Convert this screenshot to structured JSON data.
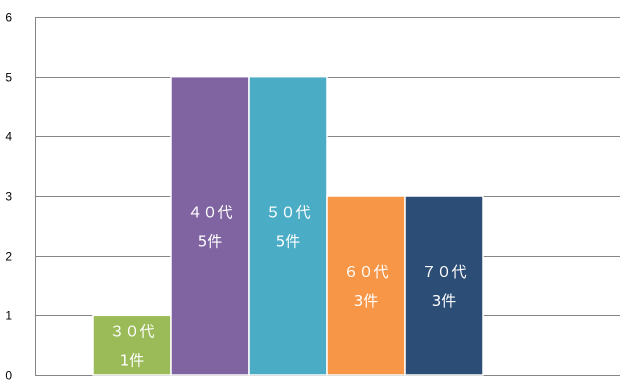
{
  "chart_data": {
    "type": "bar",
    "categories": [
      "３０代",
      "４０代",
      "５０代",
      "６０代",
      "７０代"
    ],
    "values": [
      1,
      5,
      5,
      3,
      3
    ],
    "data_labels": [
      [
        "３０代",
        "1件"
      ],
      [
        "４０代",
        "5件"
      ],
      [
        "５０代",
        "5件"
      ],
      [
        "６０代",
        "3件"
      ],
      [
        "７０代",
        "3件"
      ]
    ],
    "colors": [
      "#9bbb59",
      "#8064a2",
      "#4bacc6",
      "#f79646",
      "#2c4d75"
    ],
    "ylim": [
      0,
      6
    ],
    "yticks": [
      0,
      1,
      2,
      3,
      4,
      5,
      6
    ],
    "grid": true,
    "legend": "none",
    "title": "",
    "xlabel": "",
    "ylabel": ""
  }
}
